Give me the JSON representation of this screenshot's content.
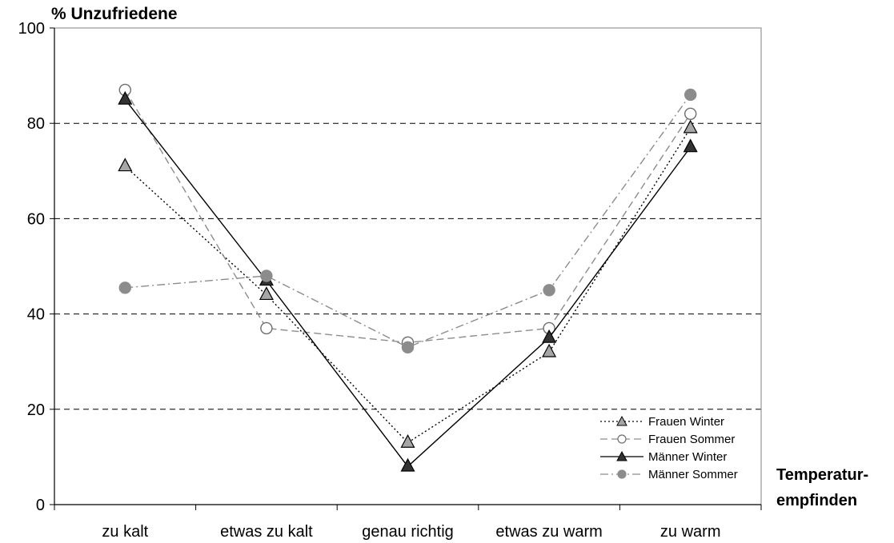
{
  "chart_data": {
    "type": "line",
    "ylabel": "% Unzufriedene",
    "xlabel_lines": [
      "Temperatur-",
      "empfinden"
    ],
    "categories": [
      "zu kalt",
      "etwas zu kalt",
      "genau richtig",
      "etwas zu warm",
      "zu warm"
    ],
    "ylim": [
      0,
      100
    ],
    "yticks": [
      0,
      20,
      40,
      60,
      80,
      100
    ],
    "grid": "dashed-horizontal",
    "legend_position": "bottom-right",
    "series": [
      {
        "name": "Frauen Winter",
        "values": [
          71,
          44,
          13,
          32,
          79
        ],
        "line": "dotted",
        "color": "#000000",
        "marker": "triangle",
        "marker_fill": "#a6a6a6"
      },
      {
        "name": "Frauen Sommer",
        "values": [
          87,
          37,
          34,
          37,
          82
        ],
        "line": "dashed",
        "color": "#8c8c8c",
        "marker": "circle",
        "marker_fill": "#ffffff"
      },
      {
        "name": "Männer Winter",
        "values": [
          85,
          47,
          8,
          35,
          75
        ],
        "line": "solid",
        "color": "#000000",
        "marker": "triangle",
        "marker_fill": "#333333"
      },
      {
        "name": "Männer Sommer",
        "values": [
          45.5,
          48,
          33,
          45,
          86
        ],
        "line": "dashdot",
        "color": "#8c8c8c",
        "marker": "circle",
        "marker_fill": "#8c8c8c"
      }
    ]
  }
}
